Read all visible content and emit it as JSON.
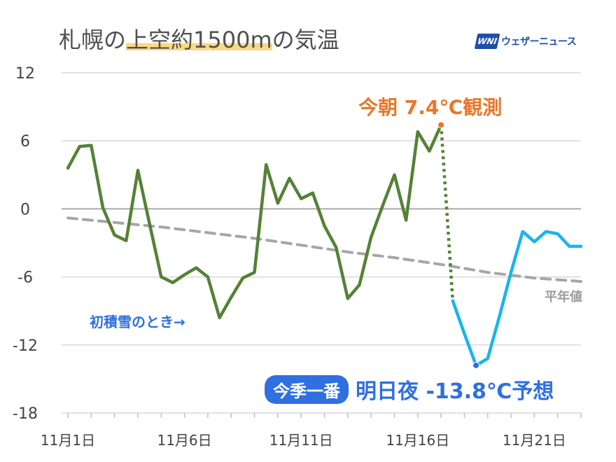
{
  "title": {
    "prefix": "札幌の",
    "highlight": "上空約1500m",
    "suffix": "の気温"
  },
  "logo": {
    "mark": "WNI",
    "text": "ウェザーニュース"
  },
  "annotations": {
    "observed": "今朝 7.4℃観測",
    "first_snow": "初積雪のとき→",
    "normal_label": "平年値",
    "forecast_badge": "今季一番",
    "forecast_text": "明日夜 -13.8℃予想"
  },
  "colors": {
    "observed": "#548235",
    "forecast": "#19b4ee",
    "normal": "#a6a6a6",
    "zero_line": "#aaaaaa",
    "grid": "#d9d9d9",
    "observed_label": "#e8782a",
    "forecast_label": "#2f6fe0"
  },
  "chart_data": {
    "type": "line",
    "title": "札幌の上空約1500mの気温",
    "xlabel": "",
    "ylabel": "",
    "ylim": [
      -18,
      12
    ],
    "yticks": [
      12,
      6,
      0,
      -6,
      -12,
      -18
    ],
    "xlim": [
      1,
      23
    ],
    "xticks": [
      {
        "x": 1,
        "label": "11月1日"
      },
      {
        "x": 6,
        "label": "11月6日"
      },
      {
        "x": 11,
        "label": "11月11日"
      },
      {
        "x": 16,
        "label": "11月16日"
      },
      {
        "x": 21,
        "label": "11月21日"
      }
    ],
    "grid": true,
    "series": [
      {
        "kind": "observed",
        "x": [
          1.0,
          1.5,
          2.0,
          2.5,
          3.0,
          3.5,
          4.0,
          4.5,
          5.0,
          5.5,
          6.0,
          6.5,
          7.0,
          7.5,
          8.0,
          8.5,
          9.0,
          9.5,
          10.0,
          10.5,
          11.0,
          11.5,
          12.0,
          12.5,
          13.0,
          13.5,
          14.0,
          14.5,
          15.0,
          15.5,
          16.0,
          16.5,
          17.0
        ],
        "y": [
          3.6,
          5.5,
          5.6,
          0.1,
          -2.3,
          -2.8,
          3.4,
          -1.3,
          -6.0,
          -6.5,
          -5.8,
          -5.2,
          -6.0,
          -9.6,
          -7.8,
          -6.1,
          -5.6,
          3.9,
          0.5,
          2.7,
          0.9,
          1.4,
          -1.5,
          -3.4,
          -7.9,
          -6.7,
          -2.5,
          0.3,
          3.0,
          -1.0,
          6.8,
          5.1,
          7.4
        ]
      },
      {
        "kind": "transition",
        "x": [
          17.0,
          17.5
        ],
        "y": [
          7.4,
          -8.1
        ]
      },
      {
        "kind": "forecast",
        "x": [
          17.5,
          18.0,
          18.5,
          19.0,
          19.5,
          20.0,
          20.5,
          21.0,
          21.5,
          22.0,
          22.5,
          23.0
        ],
        "y": [
          -8.1,
          -11.0,
          -13.8,
          -13.2,
          -9.5,
          -5.6,
          -2.0,
          -2.9,
          -2.0,
          -2.2,
          -3.3,
          -3.3
        ]
      },
      {
        "kind": "normal",
        "x": [
          1,
          3,
          5,
          7,
          9,
          11,
          13,
          15,
          17,
          19,
          21,
          23
        ],
        "y": [
          -0.8,
          -1.2,
          -1.6,
          -2.1,
          -2.6,
          -3.2,
          -3.8,
          -4.3,
          -4.9,
          -5.6,
          -6.1,
          -6.4
        ]
      }
    ],
    "markers": [
      {
        "x": 17.0,
        "y": 7.4,
        "color": "#e8782a"
      },
      {
        "x": 18.5,
        "y": -13.8,
        "color": "#2f6fe0"
      }
    ]
  }
}
